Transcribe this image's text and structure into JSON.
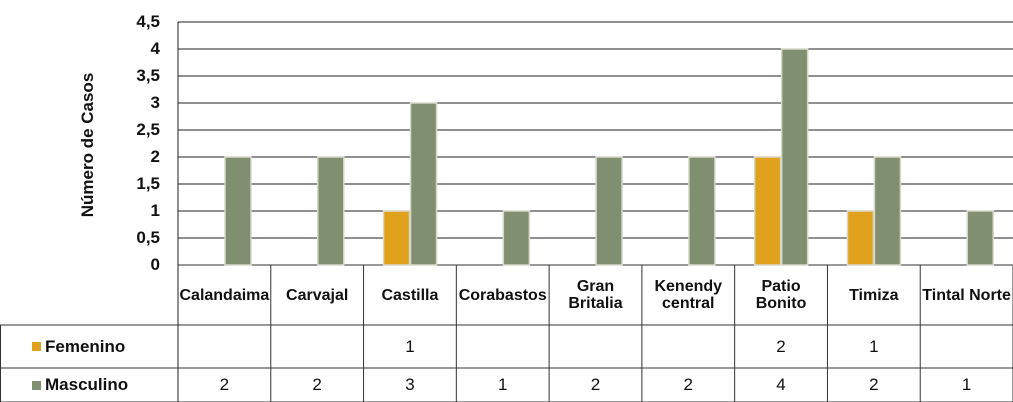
{
  "chart_data": {
    "type": "bar",
    "y_label": "Número de Casos",
    "categories": [
      "Calandaima",
      "Carvajal",
      "Castilla",
      "Corabastos",
      "Gran Britalia",
      "Kenendy central",
      "Patio Bonito",
      "Timiza",
      "Tintal Norte"
    ],
    "series": [
      {
        "name": "Femenino",
        "color": "#e0a21c",
        "values": [
          null,
          null,
          1,
          null,
          null,
          null,
          2,
          1,
          null
        ]
      },
      {
        "name": "Masculino",
        "color": "#7f8f6f",
        "values": [
          2,
          2,
          3,
          1,
          2,
          2,
          4,
          2,
          1
        ]
      }
    ],
    "ylim": [
      0,
      4.5
    ],
    "yticks": [
      0,
      {
        "value": 0.5,
        "label": "0,5"
      },
      1,
      {
        "value": 1.5,
        "label": "1,5"
      },
      2,
      {
        "value": 2.5,
        "label": "2,5"
      },
      3,
      {
        "value": 3.5,
        "label": "3,5"
      },
      4,
      {
        "value": 4.5,
        "label": "4,5"
      }
    ],
    "grid": true
  }
}
